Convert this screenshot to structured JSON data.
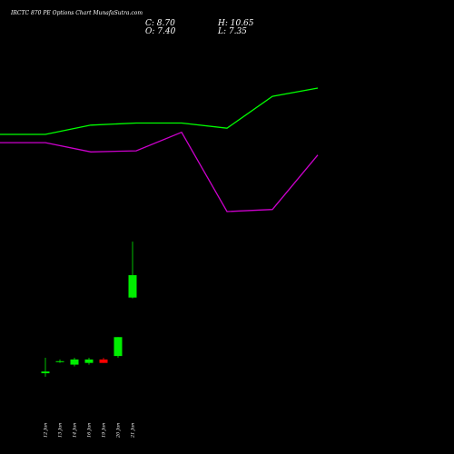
{
  "header": {
    "title": "IRCTC 870 PE Options Chart MunafaSutra.com",
    "close_label": "C: 8.70",
    "high_label": "H: 10.65",
    "open_label": "O: 7.40",
    "low_label": "L: 7.35"
  },
  "chart_data": {
    "type": "candlestick",
    "categories": [
      "12 Jun",
      "13 Jun",
      "14 Jun",
      "16 Jun",
      "19 Jun",
      "20 Jun",
      "21 Jun"
    ],
    "candles": [
      {
        "date": "12 Jun",
        "open": 3.1,
        "high": 3.9,
        "low": 2.8,
        "close": 3.0,
        "direction": "up"
      },
      {
        "date": "13 Jun",
        "open": 3.7,
        "high": 3.8,
        "low": 3.6,
        "close": 3.7,
        "direction": "up"
      },
      {
        "date": "14 Jun",
        "open": 3.5,
        "high": 3.9,
        "low": 3.4,
        "close": 3.8,
        "direction": "up"
      },
      {
        "date": "16 Jun",
        "open": 3.6,
        "high": 3.9,
        "low": 3.5,
        "close": 3.8,
        "direction": "up"
      },
      {
        "date": "19 Jun",
        "open": 3.8,
        "high": 3.9,
        "low": 3.6,
        "close": 3.6,
        "direction": "down"
      },
      {
        "date": "20 Jun",
        "open": 4.0,
        "high": 5.1,
        "low": 3.9,
        "close": 5.1,
        "direction": "up"
      },
      {
        "date": "21 Jun",
        "open": 7.4,
        "high": 10.65,
        "low": 7.35,
        "close": 8.7,
        "direction": "up"
      }
    ],
    "indicator_lines": [
      {
        "color": "#00ff00",
        "x": [
          0,
          1,
          2,
          3,
          4,
          5,
          6,
          7
        ],
        "values": [
          0.7,
          0.7,
          0.79,
          0.81,
          0.81,
          0.76,
          1.07,
          1.15
        ]
      },
      {
        "color": "#cc00cc",
        "x": [
          0,
          1,
          2,
          3,
          4,
          5,
          6,
          7
        ],
        "values": [
          0.62,
          0.62,
          0.53,
          0.54,
          0.72,
          -0.05,
          -0.03,
          0.5
        ]
      }
    ],
    "colors": {
      "up": "#00ee00",
      "down": "#ff0000",
      "background": "#000000",
      "text": "#ffffff"
    },
    "grid": false
  }
}
